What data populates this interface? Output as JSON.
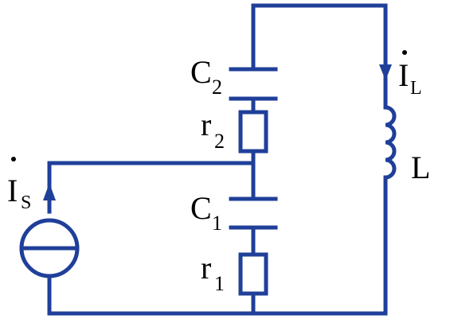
{
  "colors": {
    "wire": "#1f3f99",
    "text": "#000000",
    "background": "#ffffff"
  },
  "labels": {
    "is_main": "I",
    "is_sub": "S",
    "il_main": "I",
    "il_sub": "L",
    "c2_main": "C",
    "c2_sub": "2",
    "r2_main": "r",
    "r2_sub": "2",
    "c1_main": "C",
    "c1_sub": "1",
    "r1_main": "r",
    "r1_sub": "1",
    "inductor": "L"
  }
}
